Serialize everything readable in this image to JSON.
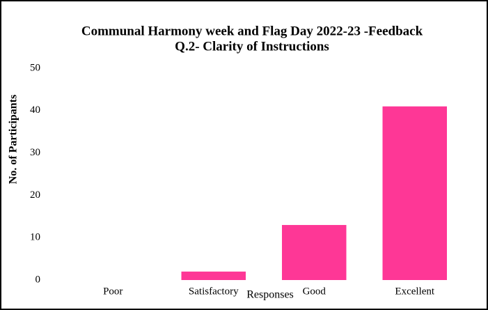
{
  "chart_data": {
    "type": "bar",
    "title": [
      "Communal Harmony week and Flag Day 2022-23  -Feedback",
      "Q.2- Clarity of Instructions"
    ],
    "x_label": "Responses",
    "y_label": "No. of Participants",
    "categories": [
      "Poor",
      "Satisfactory",
      "Good",
      "Excellent"
    ],
    "values": [
      0,
      2,
      13,
      41
    ],
    "color": "#fe3796",
    "ylim": [
      0,
      50
    ],
    "yticks": [
      0,
      10,
      20,
      30,
      40,
      50
    ],
    "grid": false
  }
}
